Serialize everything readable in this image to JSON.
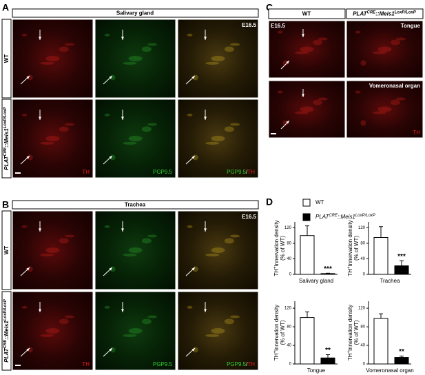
{
  "panel_a": {
    "letter": "A",
    "tissue": "Salivary gland",
    "stage": "E16.5"
  },
  "panel_b": {
    "letter": "B",
    "tissue": "Trachea",
    "stage": "E16.5"
  },
  "panel_c": {
    "letter": "C",
    "stage": "E16.5",
    "tissues": [
      "Tongue",
      "Vomeronasal organ"
    ]
  },
  "panel_d": {
    "letter": "D"
  },
  "genotype": {
    "wt": "WT",
    "ko": [
      "PLAT",
      "CRE",
      "::Meis1",
      "LoxP/LoxP"
    ]
  },
  "stains": {
    "th": "TH",
    "pgp": "PGP9.5",
    "slash": "/"
  },
  "chart_data": [
    {
      "type": "bar",
      "ylabel": [
        "TH",
        "+",
        "Innervation density",
        "(% of WT)"
      ],
      "xlabel": "Salivary gland",
      "values": [
        100,
        2
      ],
      "errors": [
        25,
        1
      ],
      "colors": [
        "#ffffff",
        "#000000"
      ],
      "significance": "***",
      "ylim": [
        0,
        135
      ],
      "yticks": [
        0,
        40,
        80,
        120
      ]
    },
    {
      "type": "bar",
      "ylabel": [
        "TH",
        "+",
        "Innervation density",
        "(% of WT)"
      ],
      "xlabel": "Trachea",
      "values": [
        95,
        22
      ],
      "errors": [
        28,
        13
      ],
      "colors": [
        "#ffffff",
        "#000000"
      ],
      "significance": "***",
      "ylim": [
        0,
        135
      ],
      "yticks": [
        0,
        40,
        80,
        120
      ]
    },
    {
      "type": "bar",
      "ylabel": [
        "TH",
        "+",
        "Innervation density",
        "(% of WT)"
      ],
      "xlabel": "Tongue",
      "values": [
        100,
        13
      ],
      "errors": [
        12,
        7
      ],
      "colors": [
        "#ffffff",
        "#000000"
      ],
      "significance": "**",
      "ylim": [
        0,
        135
      ],
      "yticks": [
        0,
        40,
        80,
        120
      ]
    },
    {
      "type": "bar",
      "ylabel": [
        "TH",
        "+",
        "Innervation density",
        "(% of WT)"
      ],
      "xlabel": "Vomeronasal organ",
      "values": [
        98,
        14
      ],
      "errors": [
        10,
        3
      ],
      "colors": [
        "#ffffff",
        "#000000"
      ],
      "significance": "**",
      "ylim": [
        0,
        135
      ],
      "yticks": [
        0,
        40,
        80,
        120
      ]
    }
  ]
}
